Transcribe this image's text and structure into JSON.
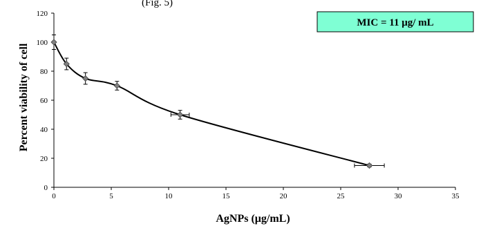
{
  "caption_fragment": "(Fig. 5)",
  "annotation": {
    "text": "MIC = 11 μg/ mL",
    "fill": "#7fffd4",
    "border": "#000000"
  },
  "chart_data": {
    "type": "line",
    "title": "",
    "xlabel": "AgNPs (μg/mL)",
    "ylabel": "Percent viability of cell",
    "xlim": [
      0,
      35
    ],
    "ylim": [
      0,
      120
    ],
    "xticks": [
      0,
      5,
      10,
      15,
      20,
      25,
      30,
      35
    ],
    "yticks": [
      0,
      20,
      40,
      60,
      80,
      100,
      120
    ],
    "grid": false,
    "legend": "none",
    "marker": "diamond",
    "line_color": "#000000",
    "marker_color": "#808080",
    "series": [
      {
        "x": [
          0,
          1.1,
          2.75,
          5.5,
          11,
          27.5
        ],
        "y": [
          100,
          85,
          75,
          70,
          50,
          15
        ],
        "y_error": [
          5,
          4,
          4,
          3,
          3,
          1
        ],
        "x_error": [
          0,
          0,
          0,
          0,
          0.8,
          1.3
        ]
      }
    ]
  }
}
